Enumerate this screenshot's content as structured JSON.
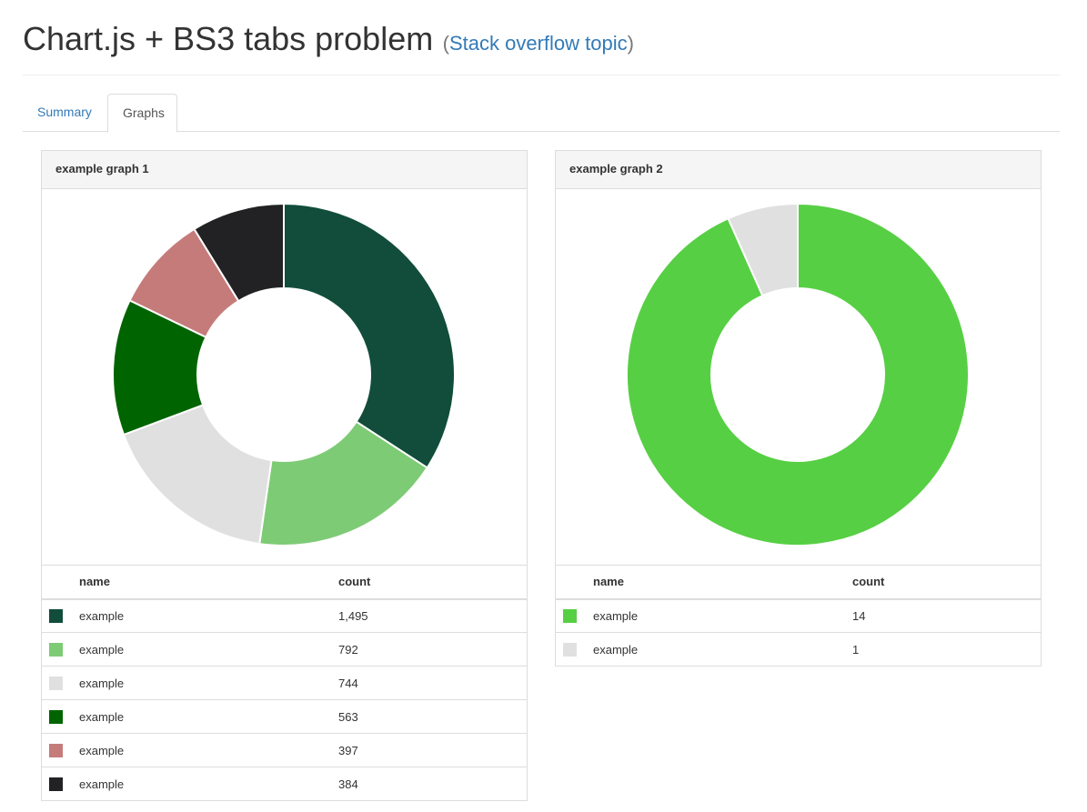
{
  "header": {
    "title": "Chart.js + BS3 tabs problem",
    "link_open": "(",
    "link_text": "Stack overflow topic",
    "link_close": ")"
  },
  "tabs": [
    {
      "label": "Summary",
      "active": false
    },
    {
      "label": "Graphs",
      "active": true
    }
  ],
  "table_headers": {
    "name": "name",
    "count": "count"
  },
  "chart_data": [
    {
      "type": "pie",
      "title": "example graph 1",
      "categories": [
        "example",
        "example",
        "example",
        "example",
        "example",
        "example"
      ],
      "values": [
        1495,
        792,
        744,
        563,
        397,
        384
      ],
      "value_labels": [
        "1,495",
        "792",
        "744",
        "563",
        "397",
        "384"
      ],
      "colors": [
        "#114d3a",
        "#7ecb75",
        "#e0e0e0",
        "#006400",
        "#c67b7b",
        "#222224"
      ],
      "donut": true
    },
    {
      "type": "pie",
      "title": "example graph 2",
      "categories": [
        "example",
        "example"
      ],
      "values": [
        14,
        1
      ],
      "value_labels": [
        "14",
        "1"
      ],
      "colors": [
        "#57cf44",
        "#e0e0e0"
      ],
      "donut": true
    }
  ]
}
